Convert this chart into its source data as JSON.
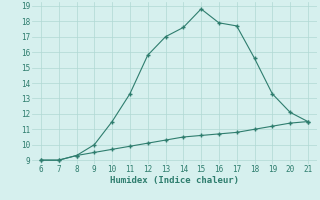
{
  "xlabel": "Humidex (Indice chaleur)",
  "x_upper": [
    6,
    7,
    8,
    9,
    10,
    11,
    12,
    13,
    14,
    15,
    16,
    17,
    18,
    19,
    20,
    21
  ],
  "y_upper": [
    9.0,
    9.0,
    9.3,
    10.0,
    11.5,
    13.3,
    15.8,
    17.0,
    17.6,
    18.8,
    17.9,
    17.7,
    15.6,
    13.3,
    12.1,
    11.5
  ],
  "x_lower": [
    6,
    7,
    8,
    9,
    10,
    11,
    12,
    13,
    14,
    15,
    16,
    17,
    18,
    19,
    20,
    21
  ],
  "y_lower": [
    9.0,
    9.0,
    9.3,
    9.5,
    9.7,
    9.9,
    10.1,
    10.3,
    10.5,
    10.6,
    10.7,
    10.8,
    11.0,
    11.2,
    11.4,
    11.5
  ],
  "line_color": "#2e7d6e",
  "bg_color": "#d6f0ee",
  "grid_color": "#b0d8d4",
  "text_color": "#2e7d6e",
  "ylim": [
    8.75,
    19.25
  ],
  "xlim": [
    5.5,
    21.5
  ],
  "yticks": [
    9,
    10,
    11,
    12,
    13,
    14,
    15,
    16,
    17,
    18,
    19
  ],
  "xticks": [
    6,
    7,
    8,
    9,
    10,
    11,
    12,
    13,
    14,
    15,
    16,
    17,
    18,
    19,
    20,
    21
  ],
  "tick_fontsize": 5.5,
  "xlabel_fontsize": 6.5
}
